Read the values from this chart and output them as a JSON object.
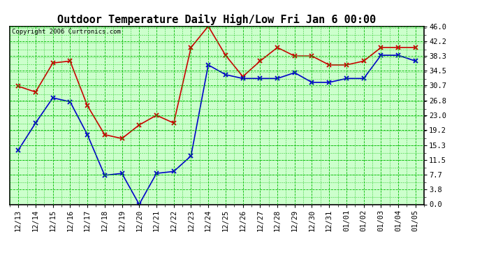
{
  "title": "Outdoor Temperature Daily High/Low Fri Jan 6 00:00",
  "copyright": "Copyright 2006 Curtronics.com",
  "x_labels": [
    "12/13",
    "12/14",
    "12/15",
    "12/16",
    "12/17",
    "12/18",
    "12/19",
    "12/20",
    "12/21",
    "12/22",
    "12/23",
    "12/24",
    "12/25",
    "12/26",
    "12/27",
    "12/28",
    "12/29",
    "12/30",
    "12/31",
    "01/01",
    "01/02",
    "01/03",
    "01/04",
    "01/05"
  ],
  "high_temps": [
    30.5,
    29.0,
    36.5,
    37.0,
    25.5,
    18.0,
    17.0,
    20.5,
    23.0,
    21.0,
    40.5,
    46.0,
    38.5,
    33.0,
    37.0,
    40.5,
    38.3,
    38.3,
    36.0,
    36.0,
    37.0,
    40.5,
    40.5,
    40.5
  ],
  "low_temps": [
    14.0,
    21.0,
    27.5,
    26.5,
    18.0,
    7.5,
    8.0,
    0.0,
    8.0,
    8.5,
    12.5,
    36.0,
    33.5,
    32.5,
    32.5,
    32.5,
    34.0,
    31.5,
    31.5,
    32.5,
    32.5,
    38.5,
    38.5,
    37.0
  ],
  "high_color": "#cc0000",
  "low_color": "#0000cc",
  "background_color": "#ffffff",
  "plot_bg_color": "#ccffcc",
  "grid_color": "#00bb00",
  "border_color": "#000000",
  "yticks": [
    0.0,
    3.8,
    7.7,
    11.5,
    15.3,
    19.2,
    23.0,
    26.8,
    30.7,
    34.5,
    38.3,
    42.2,
    46.0
  ],
  "ylim": [
    0.0,
    46.0
  ],
  "title_fontsize": 11,
  "label_fontsize": 7.5
}
